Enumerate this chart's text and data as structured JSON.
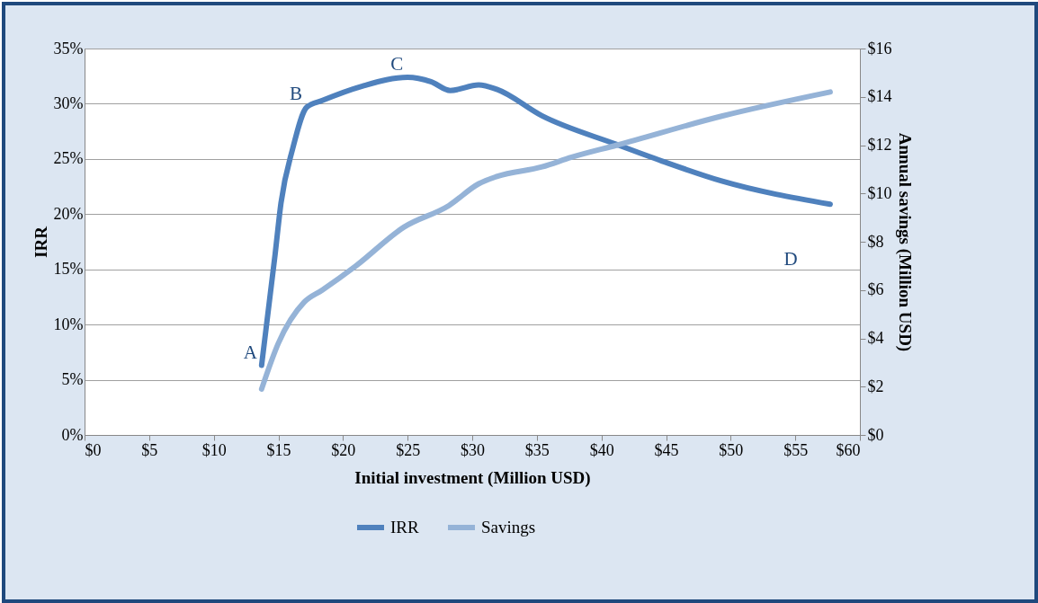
{
  "chart_data": {
    "type": "line",
    "xlabel": "Initial investment (Million USD)",
    "ylabel": "IRR",
    "y2label": "Annual savings (Million USD)",
    "xlim": [
      0,
      60
    ],
    "xticks": [
      {
        "value": 0,
        "label": "$0"
      },
      {
        "value": 5,
        "label": "$5"
      },
      {
        "value": 10,
        "label": "$10"
      },
      {
        "value": 15,
        "label": "$15"
      },
      {
        "value": 20,
        "label": "$20"
      },
      {
        "value": 25,
        "label": "$25"
      },
      {
        "value": 30,
        "label": "$30"
      },
      {
        "value": 35,
        "label": "$35"
      },
      {
        "value": 40,
        "label": "$40"
      },
      {
        "value": 45,
        "label": "$45"
      },
      {
        "value": 50,
        "label": "$50"
      },
      {
        "value": 55,
        "label": "$55"
      },
      {
        "value": 60,
        "label": "$60"
      }
    ],
    "ylim": [
      0,
      35
    ],
    "yticks": [
      {
        "value": 0,
        "label": "0%"
      },
      {
        "value": 5,
        "label": "5%"
      },
      {
        "value": 10,
        "label": "10%"
      },
      {
        "value": 15,
        "label": "15%"
      },
      {
        "value": 20,
        "label": "20%"
      },
      {
        "value": 25,
        "label": "25%"
      },
      {
        "value": 30,
        "label": "30%"
      },
      {
        "value": 35,
        "label": "35%"
      }
    ],
    "y2lim": [
      0,
      16
    ],
    "y2ticks": [
      {
        "value": 0,
        "label": "$0"
      },
      {
        "value": 2,
        "label": "$2"
      },
      {
        "value": 4,
        "label": "$4"
      },
      {
        "value": 6,
        "label": "$6"
      },
      {
        "value": 8,
        "label": "$8"
      },
      {
        "value": 10,
        "label": "$10"
      },
      {
        "value": 12,
        "label": "$12"
      },
      {
        "value": 14,
        "label": "$14"
      },
      {
        "value": 16,
        "label": "$16"
      }
    ],
    "series": [
      {
        "name": "IRR",
        "color": "#4f81bd",
        "x": [
          13.7,
          14.75,
          15.2,
          16.1,
          17.2,
          18.4,
          21.5,
          25.0,
          26.8,
          28.3,
          30.5,
          31.9,
          35.4,
          41.2,
          44.7,
          49.3,
          57.7
        ],
        "values": [
          6.3,
          16.4,
          21,
          25.9,
          29.7,
          30.3,
          31.6,
          32.4,
          32,
          31.2,
          31.7,
          31.3,
          28.9,
          26.3,
          24.8,
          23.0,
          20.9
        ]
      },
      {
        "name": "Savings",
        "color": "#95b3d7",
        "axis": "y2",
        "x": [
          13.7,
          15.0,
          17.0,
          18.4,
          21.0,
          24.7,
          28.2,
          30.5,
          31.9,
          35.4,
          37.7,
          41.2,
          49.3,
          57.7
        ],
        "values": [
          1.9,
          3.8,
          5.5,
          6.0,
          7.0,
          8.6,
          9.5,
          10.4,
          10.7,
          11.1,
          11.5,
          12.0,
          13.2,
          14.2
        ]
      }
    ],
    "annotations": [
      {
        "text": "A",
        "x": 13.7,
        "y": 6.3
      },
      {
        "text": "B",
        "x": 17.2,
        "y": 29.7
      },
      {
        "text": "C",
        "x": 25.0,
        "y": 32.4
      },
      "D"
    ],
    "grid": "y",
    "legend": "bottom",
    "marker": "none",
    "line_style": "solid"
  }
}
